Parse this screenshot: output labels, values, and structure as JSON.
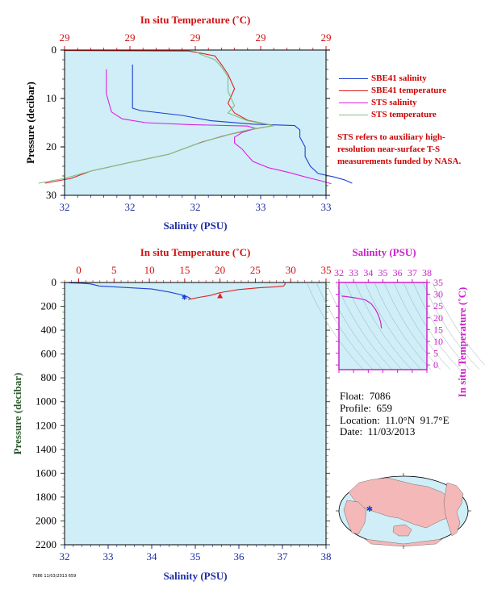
{
  "float_info": {
    "float_label": "Float:",
    "float_value": "7086",
    "profile_label": "Profile:",
    "profile_value": "659",
    "location_label": "Location:",
    "location_value": "11.0°N  91.7°E",
    "date_label": "Date:",
    "date_value": "11/03/2013"
  },
  "legend": [
    {
      "label": "SBE41 salinity",
      "color": "#1f3fd1"
    },
    {
      "label": "SBE41 temperature",
      "color": "#e02020"
    },
    {
      "label": "STS salinity",
      "color": "#e020e0"
    },
    {
      "label": "STS temperature",
      "color": "#80c080"
    }
  ],
  "note": "STS refers to auxiliary high-resolution near-surface T-S measurements funded by NASA.",
  "footer_text": "7086 11/03/2013 659",
  "colors": {
    "plot_bg": "#cfeef7",
    "salinity_axis": "#1f2fa0",
    "temperature_axis": "#d01010",
    "pressure_axis": "#2a5a2a",
    "ts_axis": "#cc22cc",
    "land": "#f4b8b8",
    "ocean": "#cfeef7"
  },
  "chart_data": [
    {
      "type": "line",
      "title": "",
      "top_axis_label": "In situ Temperature (˚C)",
      "top_tick_labels": [
        "29",
        "29",
        "29",
        "29",
        "29"
      ],
      "xlabel": "Salinity (PSU)",
      "x_tick_labels": [
        "32",
        "32",
        "32",
        "33",
        "33"
      ],
      "ylabel": "Pressure (decibar)",
      "y_ticks": [
        0,
        10,
        20,
        30
      ],
      "ylim": [
        0,
        30
      ],
      "salinity_xlim": [
        32.0,
        33.0
      ],
      "temperature_xlim": [
        28.9,
        29.3
      ],
      "grid": false,
      "series": [
        {
          "name": "SBE41 salinity",
          "axis": "salinity",
          "points": [
            [
              32.26,
              3.0
            ],
            [
              32.26,
              12.0
            ],
            [
              32.29,
              12.5
            ],
            [
              32.45,
              13.5
            ],
            [
              32.56,
              14.6
            ],
            [
              32.72,
              15.3
            ],
            [
              32.88,
              15.6
            ],
            [
              32.9,
              16.5
            ],
            [
              32.9,
              18.0
            ],
            [
              32.92,
              20.0
            ],
            [
              32.92,
              22.0
            ],
            [
              32.94,
              24.0
            ],
            [
              32.97,
              25.5
            ],
            [
              33.03,
              26.2
            ],
            [
              33.07,
              26.8
            ],
            [
              33.1,
              27.5
            ]
          ]
        },
        {
          "name": "SBE41 temperature",
          "axis": "temperature",
          "points": [
            [
              28.9,
              0.1
            ],
            [
              29.09,
              0.2
            ],
            [
              29.13,
              1.2
            ],
            [
              29.14,
              3.0
            ],
            [
              29.15,
              5.0
            ],
            [
              29.16,
              8.0
            ],
            [
              29.15,
              11.0
            ],
            [
              29.16,
              13.0
            ],
            [
              29.18,
              14.5
            ],
            [
              29.22,
              15.6
            ],
            [
              29.19,
              16.3
            ],
            [
              29.15,
              17.5
            ],
            [
              29.11,
              19.0
            ],
            [
              29.06,
              21.5
            ],
            [
              28.99,
              23.5
            ],
            [
              28.94,
              25.0
            ],
            [
              28.91,
              26.5
            ],
            [
              28.87,
              27.5
            ]
          ]
        },
        {
          "name": "STS salinity",
          "axis": "salinity",
          "points": [
            [
              32.16,
              4.0
            ],
            [
              32.16,
              6.0
            ],
            [
              32.16,
              9.0
            ],
            [
              32.17,
              11.0
            ],
            [
              32.18,
              12.8
            ],
            [
              32.22,
              14.2
            ],
            [
              32.31,
              15.0
            ],
            [
              32.48,
              15.4
            ],
            [
              32.7,
              15.7
            ],
            [
              32.73,
              16.2
            ],
            [
              32.68,
              17.0
            ],
            [
              32.65,
              18.0
            ],
            [
              32.65,
              19.2
            ],
            [
              32.68,
              20.5
            ],
            [
              32.7,
              21.8
            ],
            [
              32.72,
              23.0
            ],
            [
              32.78,
              24.3
            ],
            [
              32.86,
              25.3
            ],
            [
              32.92,
              26.2
            ],
            [
              32.98,
              27.0
            ],
            [
              33.02,
              27.6
            ]
          ]
        },
        {
          "name": "STS temperature",
          "axis": "temperature",
          "points": [
            [
              29.1,
              0.3
            ],
            [
              29.11,
              1.0
            ],
            [
              29.13,
              2.0
            ],
            [
              29.14,
              3.5
            ],
            [
              29.15,
              5.5
            ],
            [
              29.15,
              8.5
            ],
            [
              29.16,
              11.5
            ],
            [
              29.15,
              13.0
            ],
            [
              29.18,
              14.6
            ],
            [
              29.22,
              15.6
            ],
            [
              29.18,
              16.5
            ],
            [
              29.14,
              17.8
            ],
            [
              29.1,
              19.5
            ],
            [
              29.06,
              21.5
            ],
            [
              28.99,
              23.5
            ],
            [
              28.94,
              25.0
            ],
            [
              28.9,
              26.5
            ],
            [
              28.86,
              27.5
            ]
          ]
        }
      ]
    },
    {
      "type": "line",
      "title": "",
      "top_axis_label": "In situ Temperature (˚C)",
      "temperature_ticks": [
        0,
        5,
        10,
        15,
        20,
        25,
        30,
        35
      ],
      "temperature_xlim": [
        -2,
        35
      ],
      "xlabel": "Salinity (PSU)",
      "salinity_ticks": [
        32,
        33,
        34,
        35,
        36,
        37,
        38
      ],
      "salinity_xlim": [
        32,
        38
      ],
      "ylabel": "Pressure (decibar)",
      "y_ticks": [
        0,
        200,
        400,
        600,
        800,
        1000,
        1200,
        1400,
        1600,
        1800,
        2000,
        2200
      ],
      "ylim": [
        0,
        2200
      ],
      "grid": false,
      "series": [
        {
          "name": "Salinity",
          "axis": "salinity",
          "color": "#1f3fd1",
          "points": [
            [
              32.1,
              3
            ],
            [
              32.4,
              6
            ],
            [
              32.6,
              12
            ],
            [
              32.8,
              30
            ],
            [
              33.3,
              40
            ],
            [
              34.0,
              55
            ],
            [
              34.4,
              80
            ],
            [
              34.7,
              105
            ],
            [
              34.85,
              125
            ],
            [
              34.9,
              140
            ]
          ]
        },
        {
          "name": "Temperature",
          "axis": "temperature",
          "color": "#e02020",
          "points": [
            [
              29.2,
              0
            ],
            [
              29.2,
              15
            ],
            [
              29.0,
              30
            ],
            [
              28.0,
              36
            ],
            [
              25.5,
              45
            ],
            [
              22.5,
              60
            ],
            [
              20.0,
              85
            ],
            [
              18.5,
              110
            ],
            [
              17.0,
              125
            ],
            [
              15.5,
              143
            ]
          ]
        }
      ],
      "markers": [
        {
          "series": "Salinity",
          "x": 34.75,
          "y": 120,
          "shape": "star"
        },
        {
          "series": "Temperature",
          "x": 20.0,
          "y": 115,
          "shape": "triangle"
        }
      ]
    },
    {
      "type": "line",
      "title": "",
      "top_axis_label": "Salinity (PSU)",
      "salinity_ticks": [
        32,
        33,
        34,
        35,
        36,
        37,
        38
      ],
      "salinity_xlim": [
        32,
        38
      ],
      "ylabel": "In situ Temperature (˚C)",
      "temperature_ticks": [
        0,
        5,
        10,
        15,
        20,
        25,
        30,
        35
      ],
      "temperature_ylim": [
        -2,
        35
      ],
      "grid": false,
      "series": [
        {
          "name": "T-S",
          "color": "#cc22cc",
          "points": [
            [
              32.2,
              29.2
            ],
            [
              32.5,
              29.0
            ],
            [
              33.2,
              28.4
            ],
            [
              33.8,
              27.6
            ],
            [
              34.2,
              26.0
            ],
            [
              34.5,
              23.5
            ],
            [
              34.7,
              21.0
            ],
            [
              34.85,
              18.0
            ],
            [
              34.9,
              15.5
            ]
          ]
        }
      ]
    }
  ]
}
